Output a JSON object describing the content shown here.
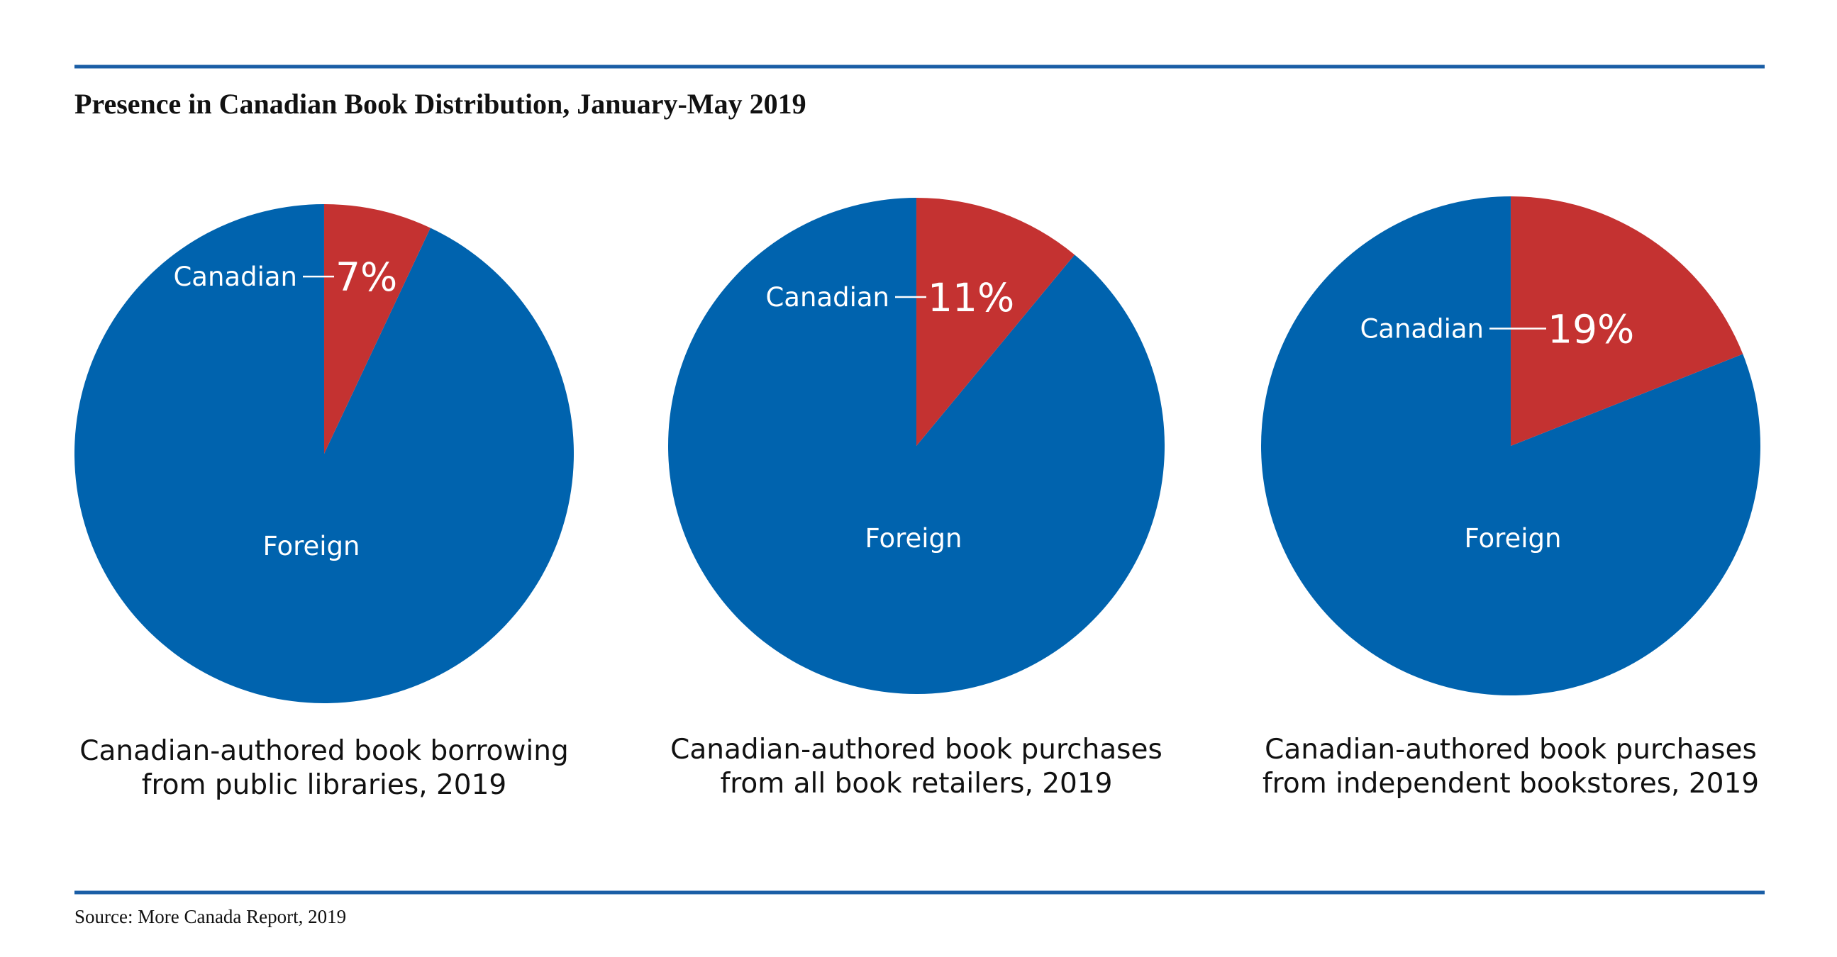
{
  "colors": {
    "rule": "#1a5ea6",
    "canadian": "#c43231",
    "foreign": "#0063ae",
    "text": "#111111",
    "label": "#ffffff"
  },
  "title": "Presence in Canadian Book Distribution, January-May 2019",
  "source": "Source: More Canada Report, 2019",
  "chart_data": [
    {
      "type": "pie",
      "slices": [
        {
          "label": "Canadian",
          "value": 7,
          "display": "7%"
        },
        {
          "label": "Foreign",
          "value": 93
        }
      ],
      "caption": [
        "Canadian-authored book borrowing",
        "from public libraries, 2019"
      ]
    },
    {
      "type": "pie",
      "slices": [
        {
          "label": "Canadian",
          "value": 11,
          "display": "11%"
        },
        {
          "label": "Foreign",
          "value": 89
        }
      ],
      "caption": [
        "Canadian-authored book purchases",
        "from all book retailers, 2019"
      ]
    },
    {
      "type": "pie",
      "slices": [
        {
          "label": "Canadian",
          "value": 19,
          "display": "19%"
        },
        {
          "label": "Foreign",
          "value": 81
        }
      ],
      "caption": [
        "Canadian-authored book purchases",
        "from independent bookstores, 2019"
      ]
    }
  ]
}
